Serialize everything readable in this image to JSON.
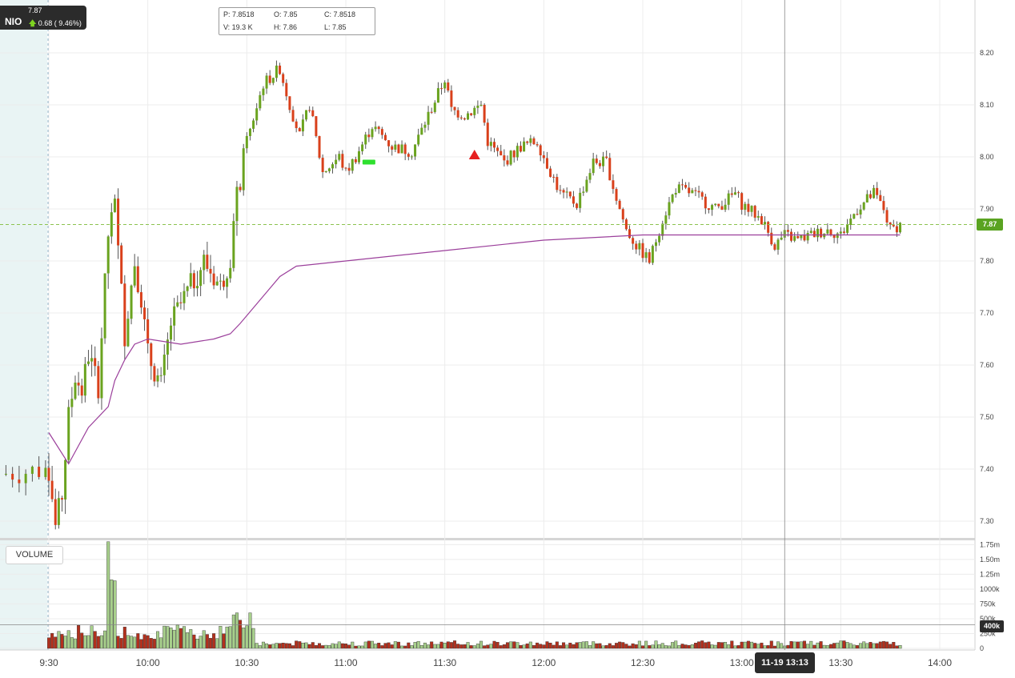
{
  "ticker": {
    "symbol": "NIO",
    "price": "7.87",
    "change": "0.68 ( 9.46%)",
    "direction": "up-arrow-icon"
  },
  "ohlc": {
    "p_label": "P: 7.8518",
    "o_label": "O: 7.85",
    "c_label": "C: 7.8518",
    "v_label": "V: 19.3 K",
    "h_label": "H: 7.86",
    "l_label": "L: 7.85"
  },
  "volume_pane": {
    "label": "VOLUME"
  },
  "crosshair": {
    "time_label": "11-19 13:13",
    "volume_label": "400k"
  },
  "last_price_label": "7.87",
  "colors": {
    "up": "#6aa31f",
    "down": "#d9401b",
    "vwap": "#9b3f9b",
    "grid": "#ececec",
    "premarket_bg": "#e9f4f4",
    "vol_up": "#a7cf8b",
    "vol_down": "#b3301d"
  },
  "chart_data": {
    "type": "candlestick",
    "symbol": "NIO",
    "interval": "1m",
    "price_axis": {
      "ylim": [
        7.25,
        8.25
      ],
      "ticks": [
        "7.30",
        "7.40",
        "7.50",
        "7.60",
        "7.70",
        "7.80",
        "7.90",
        "8.00",
        "8.10",
        "8.20"
      ]
    },
    "volume_axis": {
      "ylim": [
        0,
        1850000
      ],
      "ticks": [
        "0",
        "250k",
        "500k",
        "750k",
        "1000k",
        "1.25m",
        "1.50m",
        "1.75m"
      ]
    },
    "time_axis": {
      "ticks": [
        "9:30",
        "10:00",
        "10:30",
        "11:00",
        "11:30",
        "12:00",
        "12:30",
        "13:00",
        "13:30",
        "14:00"
      ]
    },
    "grid": true,
    "last_price": 7.87,
    "anchors": [
      [
        9.0,
        7.39
      ],
      [
        9.3,
        7.4
      ],
      [
        9.32,
        7.29
      ],
      [
        9.34,
        7.35
      ],
      [
        9.36,
        7.5
      ],
      [
        9.38,
        7.58
      ],
      [
        9.4,
        7.55
      ],
      [
        9.42,
        7.62
      ],
      [
        9.45,
        7.56
      ],
      [
        9.48,
        7.85
      ],
      [
        9.5,
        7.9
      ],
      [
        9.53,
        7.66
      ],
      [
        9.56,
        7.8
      ],
      [
        9.58,
        7.73
      ],
      [
        10.0,
        7.62
      ],
      [
        10.04,
        7.56
      ],
      [
        10.07,
        7.68
      ],
      [
        10.12,
        7.74
      ],
      [
        10.17,
        7.8
      ],
      [
        10.22,
        7.75
      ],
      [
        10.25,
        7.81
      ],
      [
        10.27,
        7.92
      ],
      [
        10.3,
        8.03
      ],
      [
        10.35,
        8.14
      ],
      [
        10.4,
        8.17
      ],
      [
        10.43,
        8.1
      ],
      [
        10.46,
        8.04
      ],
      [
        10.49,
        8.1
      ],
      [
        10.53,
        7.97
      ],
      [
        10.58,
        8.0
      ],
      [
        11.0,
        7.97
      ],
      [
        11.03,
        8.0
      ],
      [
        11.08,
        8.06
      ],
      [
        11.14,
        8.02
      ],
      [
        11.2,
        8.01
      ],
      [
        11.25,
        8.08
      ],
      [
        11.3,
        8.15
      ],
      [
        11.32,
        8.09
      ],
      [
        11.36,
        8.08
      ],
      [
        11.41,
        8.1
      ],
      [
        11.43,
        8.03
      ],
      [
        11.48,
        7.99
      ],
      [
        11.53,
        8.02
      ],
      [
        11.58,
        8.03
      ],
      [
        12.0,
        8.0
      ],
      [
        12.05,
        7.93
      ],
      [
        12.1,
        7.91
      ],
      [
        12.15,
        7.99
      ],
      [
        12.19,
        7.99
      ],
      [
        12.22,
        7.92
      ],
      [
        12.25,
        7.86
      ],
      [
        12.28,
        7.83
      ],
      [
        12.32,
        7.8
      ],
      [
        12.36,
        7.88
      ],
      [
        12.4,
        7.94
      ],
      [
        12.45,
        7.93
      ],
      [
        12.52,
        7.9
      ],
      [
        12.58,
        7.93
      ],
      [
        13.0,
        7.91
      ],
      [
        13.06,
        7.88
      ],
      [
        13.1,
        7.83
      ],
      [
        13.13,
        7.85
      ],
      [
        13.17,
        7.84
      ],
      [
        13.21,
        7.85
      ],
      [
        13.26,
        7.86
      ],
      [
        13.3,
        7.85
      ],
      [
        13.35,
        7.9
      ],
      [
        13.4,
        7.93
      ],
      [
        13.43,
        7.9
      ],
      [
        13.45,
        7.86
      ],
      [
        13.48,
        7.87
      ]
    ],
    "vwap": [
      [
        9.3,
        7.47
      ],
      [
        9.36,
        7.41
      ],
      [
        9.42,
        7.48
      ],
      [
        9.48,
        7.52
      ],
      [
        9.5,
        7.57
      ],
      [
        9.53,
        7.61
      ],
      [
        9.56,
        7.64
      ],
      [
        10.0,
        7.65
      ],
      [
        10.1,
        7.64
      ],
      [
        10.2,
        7.65
      ],
      [
        10.25,
        7.66
      ],
      [
        10.28,
        7.68
      ],
      [
        10.32,
        7.71
      ],
      [
        10.36,
        7.74
      ],
      [
        10.4,
        7.77
      ],
      [
        10.45,
        7.79
      ],
      [
        11.0,
        7.8
      ],
      [
        11.3,
        7.82
      ],
      [
        12.0,
        7.84
      ],
      [
        12.3,
        7.85
      ],
      [
        13.0,
        7.85
      ],
      [
        13.48,
        7.85
      ]
    ],
    "markers": [
      {
        "time": 11.07,
        "price": 7.99,
        "type": "buy"
      },
      {
        "time": 11.39,
        "price": 8.0,
        "type": "sell"
      }
    ],
    "ohlc_readout": {
      "p": 7.8518,
      "o": 7.85,
      "c": 7.8518,
      "v": "19.3 K",
      "h": 7.86,
      "l": 7.85
    },
    "crosshair_time": "11-19 13:13"
  }
}
